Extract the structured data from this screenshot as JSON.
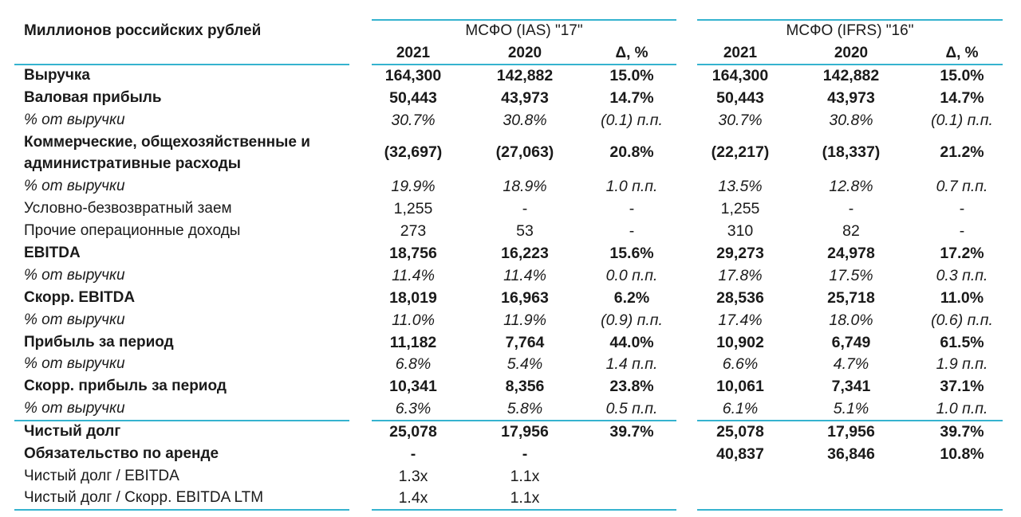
{
  "header": {
    "units_label": "Миллионов российских рублей",
    "group_left": "МСФО (IAS) \"17\"",
    "group_right": "МСФО (IFRS) \"16\"",
    "columns": [
      "2021",
      "2020",
      "Δ, %",
      "2021",
      "2020",
      "Δ, %"
    ]
  },
  "rows": [
    {
      "label": "Выручка",
      "values": [
        "164,300",
        "142,882",
        "15.0%",
        "164,300",
        "142,882",
        "15.0%"
      ]
    },
    {
      "label": "Валовая прибыль",
      "values": [
        "50,443",
        "43,973",
        "14.7%",
        "50,443",
        "43,973",
        "14.7%"
      ]
    },
    {
      "label": "% от выручки",
      "values": [
        "30.7%",
        "30.8%",
        "(0.1) п.п.",
        "30.7%",
        "30.8%",
        "(0.1) п.п."
      ]
    },
    {
      "label_line1": "Коммерческие, общехозяйственные и",
      "label_line2": "административные расходы",
      "values": [
        "(32,697)",
        "(27,063)",
        "20.8%",
        "(22,217)",
        "(18,337)",
        "21.2%"
      ]
    },
    {
      "label": "% от выручки",
      "values": [
        "19.9%",
        "18.9%",
        "1.0 п.п.",
        "13.5%",
        "12.8%",
        "0.7 п.п."
      ]
    },
    {
      "label": "Условно-безвозвратный заем",
      "values": [
        "1,255",
        "-",
        "-",
        "1,255",
        "-",
        "-"
      ]
    },
    {
      "label": "Прочие операционные доходы",
      "values": [
        "273",
        "53",
        "-",
        "310",
        "82",
        "-"
      ]
    },
    {
      "label": "EBITDA",
      "values": [
        "18,756",
        "16,223",
        "15.6%",
        "29,273",
        "24,978",
        "17.2%"
      ]
    },
    {
      "label": "% от выручки",
      "values": [
        "11.4%",
        "11.4%",
        "0.0 п.п.",
        "17.8%",
        "17.5%",
        "0.3 п.п."
      ]
    },
    {
      "label": "Скорр. EBITDA",
      "values": [
        "18,019",
        "16,963",
        "6.2%",
        "28,536",
        "25,718",
        "11.0%"
      ]
    },
    {
      "label": "% от выручки",
      "values": [
        "11.0%",
        "11.9%",
        "(0.9) п.п.",
        "17.4%",
        "18.0%",
        "(0.6) п.п."
      ]
    },
    {
      "label": "Прибыль за период",
      "values": [
        "11,182",
        "7,764",
        "44.0%",
        "10,902",
        "6,749",
        "61.5%"
      ]
    },
    {
      "label": "% от выручки",
      "values": [
        "6.8%",
        "5.4%",
        "1.4 п.п.",
        "6.6%",
        "4.7%",
        "1.9 п.п."
      ]
    },
    {
      "label": "Скорр. прибыль за период",
      "values": [
        "10,341",
        "8,356",
        "23.8%",
        "10,061",
        "7,341",
        "37.1%"
      ]
    },
    {
      "label": "% от выручки",
      "values": [
        "6.3%",
        "5.8%",
        "0.5 п.п.",
        "6.1%",
        "5.1%",
        "1.0 п.п."
      ]
    },
    {
      "label": "Чистый долг",
      "values": [
        "25,078",
        "17,956",
        "39.7%",
        "25,078",
        "17,956",
        "39.7%"
      ]
    },
    {
      "label": "Обязательство по аренде",
      "values": [
        "-",
        "-",
        "",
        "40,837",
        "36,846",
        "10.8%"
      ]
    },
    {
      "label": "Чистый долг / EBITDA",
      "values": [
        "1.3x",
        "1.1x",
        "",
        "",
        "",
        ""
      ]
    },
    {
      "label": "Чистый долг / Скорр. EBITDA LTM",
      "values": [
        "1.4x",
        "1.1x",
        "",
        "",
        "",
        ""
      ]
    }
  ],
  "colors": {
    "rule": "#35b3cf",
    "text": "#1a1a1a"
  }
}
